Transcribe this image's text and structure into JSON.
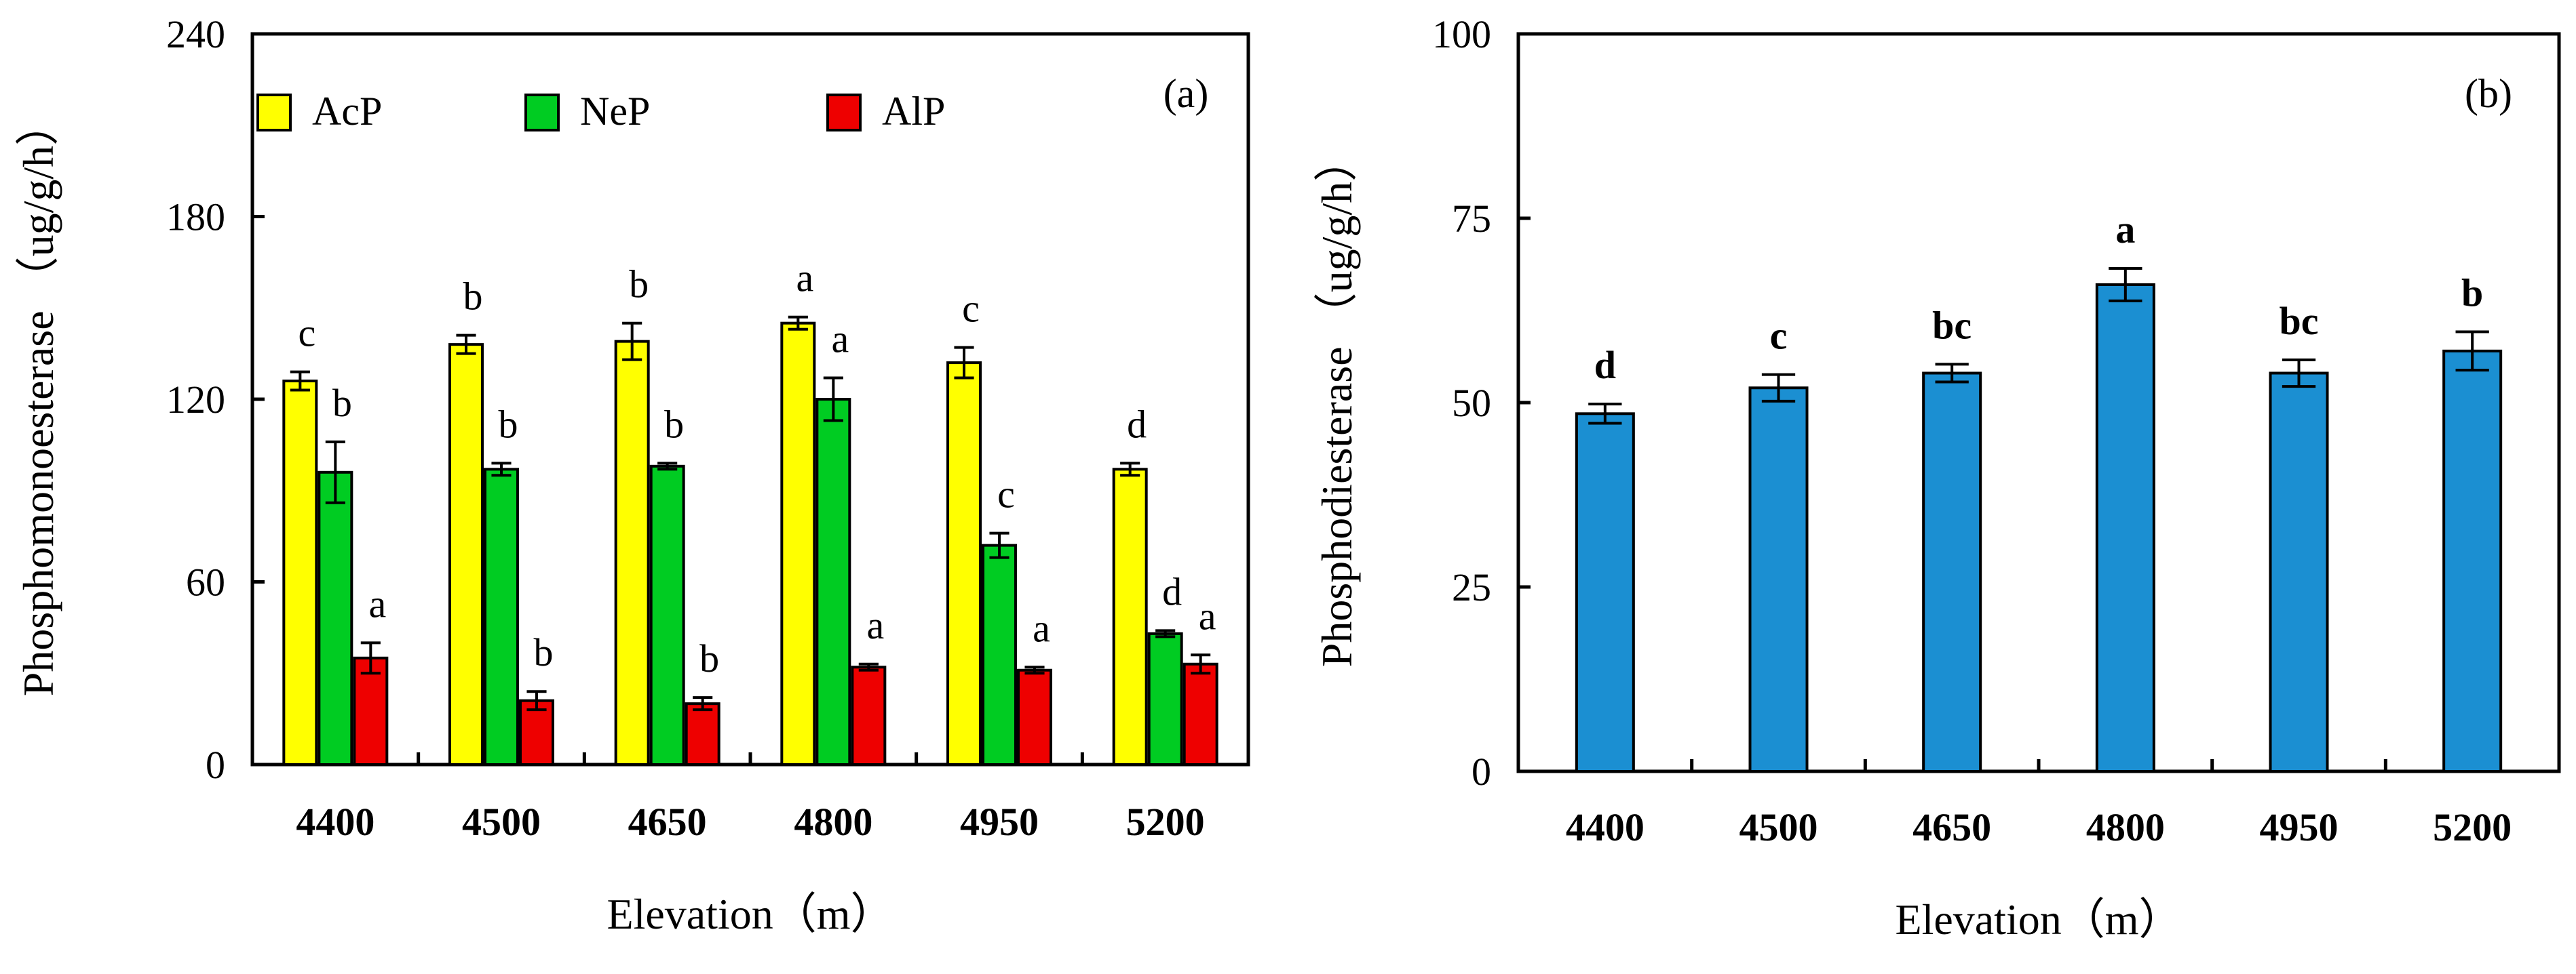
{
  "colors": {
    "AcP": "#ffff00",
    "NeP": "#00cc22",
    "AlP": "#ee0000",
    "Phosphodiesterase": "#1b8fd2",
    "axis": "#000000"
  },
  "chart_data": [
    {
      "type": "bar",
      "panel_label": "(a)",
      "categories": [
        "4400",
        "4500",
        "4650",
        "4800",
        "4950",
        "5200"
      ],
      "xlabel": "Elevation（m）",
      "ylabel": "Phosphomonoesterase （ug/g/h）",
      "ylim": [
        0,
        240
      ],
      "yticks": [
        "0",
        "60",
        "120",
        "180",
        "240"
      ],
      "legend_position": "top-left",
      "series": [
        {
          "name": "AcP",
          "values": [
            126,
            138,
            139,
            145,
            132,
            97
          ],
          "errors": [
            3,
            3,
            6,
            2,
            5,
            2
          ],
          "letters": [
            "c",
            "b",
            "b",
            "a",
            "c",
            "d"
          ]
        },
        {
          "name": "NeP",
          "values": [
            96,
            97,
            98,
            120,
            72,
            43
          ],
          "errors": [
            10,
            2,
            1,
            7,
            4,
            1
          ],
          "letters": [
            "b",
            "b",
            "b",
            "a",
            "c",
            "d"
          ]
        },
        {
          "name": "AlP",
          "values": [
            35,
            21,
            20,
            32,
            31,
            33
          ],
          "errors": [
            5,
            3,
            2,
            1,
            1,
            3
          ],
          "letters": [
            "a",
            "b",
            "b",
            "a",
            "a",
            "a"
          ]
        }
      ]
    },
    {
      "type": "bar",
      "panel_label": "(b)",
      "categories": [
        "4400",
        "4500",
        "4650",
        "4800",
        "4950",
        "5200"
      ],
      "xlabel": "Elevation（m）",
      "ylabel": "Phosphodiesterase （ug/g/h）",
      "ylim": [
        0,
        100
      ],
      "yticks": [
        "0",
        "25",
        "50",
        "75",
        "100"
      ],
      "series": [
        {
          "name": "Phosphodiesterase",
          "values": [
            48.5,
            52,
            54,
            66,
            54,
            57
          ],
          "errors": [
            1.3,
            1.8,
            1.2,
            2.2,
            1.8,
            2.6
          ],
          "letters": [
            "d",
            "c",
            "bc",
            "a",
            "bc",
            "b"
          ]
        }
      ]
    }
  ]
}
